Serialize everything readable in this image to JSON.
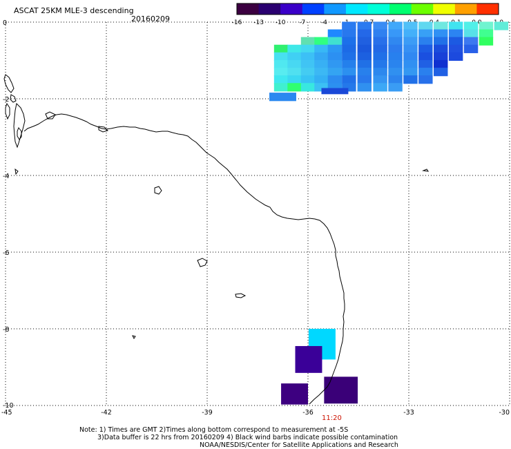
{
  "title": {
    "product": "ASCAT 25KM MLE-3 descending",
    "date": "20160209"
  },
  "colorbar": {
    "tick_labels": [
      "-16",
      "-13",
      "-10",
      "-7",
      "-4",
      "-1",
      "-0.7",
      "-0.6",
      "-0.5",
      "-0.4",
      "-0.1",
      "0.0",
      "1.0"
    ],
    "colors": [
      "#3b0040",
      "#2a0070",
      "#3a00c8",
      "#0040ff",
      "#1098ff",
      "#00e8ff",
      "#00ffd8",
      "#00ff70",
      "#6cff00",
      "#f0ff00",
      "#ffa000",
      "#ff3000"
    ]
  },
  "time_label": {
    "text": "11:20",
    "color": "#cc1100"
  },
  "notes": {
    "line1": "Note: 1) Times are GMT 2)Times along bottom correspond to measurement at -5S",
    "line2": "3)Data buffer is 22 hrs from 20160209 4) Black wind barbs indicate possible contamination",
    "line3": "NOAA/NESDIS/Center for Satellite Applications and Research"
  },
  "chart_data": {
    "type": "heatmap",
    "title": "ASCAT 25KM MLE-3 descending",
    "subtitle": "20160209",
    "xlabel": "",
    "ylabel": "",
    "x_ticks": [
      "-45",
      "-42",
      "-39",
      "-36",
      "-33",
      "-30"
    ],
    "y_ticks": [
      "0",
      "-2",
      "-4",
      "-6",
      "-8",
      "-10"
    ],
    "xlim": [
      -45,
      -30
    ],
    "ylim": [
      -10,
      0
    ],
    "grid": true,
    "legend": "colorbar top-right",
    "cells": [
      {
        "lon": -34.78,
        "lat": -0.1,
        "c": "#2a7af0"
      },
      {
        "lon": -34.32,
        "lat": -0.1,
        "c": "#2a7af0"
      },
      {
        "lon": -33.85,
        "lat": -0.1,
        "c": "#3a8cf4"
      },
      {
        "lon": -33.4,
        "lat": -0.1,
        "c": "#40a8fa"
      },
      {
        "lon": -32.95,
        "lat": -0.1,
        "c": "#50c0f8"
      },
      {
        "lon": -32.5,
        "lat": -0.1,
        "c": "#60d8f0"
      },
      {
        "lon": -32.05,
        "lat": -0.1,
        "c": "#70e8e0"
      },
      {
        "lon": -31.6,
        "lat": -0.1,
        "c": "#40e4f0"
      },
      {
        "lon": -31.15,
        "lat": -0.1,
        "c": "#50f0e8"
      },
      {
        "lon": -30.7,
        "lat": -0.1,
        "c": "#70f4d0"
      },
      {
        "lon": -30.25,
        "lat": -0.1,
        "c": "#60ecd8"
      },
      {
        "lon": -35.2,
        "lat": -0.3,
        "c": "#1f88ff"
      },
      {
        "lon": -34.78,
        "lat": -0.3,
        "c": "#2878ee"
      },
      {
        "lon": -34.32,
        "lat": -0.3,
        "c": "#2468e8"
      },
      {
        "lon": -33.85,
        "lat": -0.3,
        "c": "#2f80f0"
      },
      {
        "lon": -33.4,
        "lat": -0.3,
        "c": "#3898f8"
      },
      {
        "lon": -32.95,
        "lat": -0.3,
        "c": "#44b0fa"
      },
      {
        "lon": -32.5,
        "lat": -0.3,
        "c": "#38a0f6"
      },
      {
        "lon": -32.05,
        "lat": -0.3,
        "c": "#3090f4"
      },
      {
        "lon": -31.6,
        "lat": -0.3,
        "c": "#2c84f2"
      },
      {
        "lon": -31.15,
        "lat": -0.3,
        "c": "#58e0e8"
      },
      {
        "lon": -30.7,
        "lat": -0.3,
        "c": "#40ff90"
      },
      {
        "lon": -36.0,
        "lat": -0.5,
        "c": "#60e0b0"
      },
      {
        "lon": -35.6,
        "lat": -0.5,
        "c": "#30ff80"
      },
      {
        "lon": -35.2,
        "lat": -0.5,
        "c": "#40e0d0"
      },
      {
        "lon": -34.78,
        "lat": -0.5,
        "c": "#1c70ea"
      },
      {
        "lon": -34.32,
        "lat": -0.5,
        "c": "#2060e0"
      },
      {
        "lon": -33.85,
        "lat": -0.5,
        "c": "#2870ea"
      },
      {
        "lon": -33.4,
        "lat": -0.5,
        "c": "#3088f0"
      },
      {
        "lon": -32.95,
        "lat": -0.5,
        "c": "#3c9cf6"
      },
      {
        "lon": -32.5,
        "lat": -0.5,
        "c": "#2a80ee"
      },
      {
        "lon": -32.05,
        "lat": -0.5,
        "c": "#2070e8"
      },
      {
        "lon": -31.6,
        "lat": -0.5,
        "c": "#1c5ae2"
      },
      {
        "lon": -31.15,
        "lat": -0.5,
        "c": "#3c78f0"
      },
      {
        "lon": -30.7,
        "lat": -0.5,
        "c": "#30ff60"
      },
      {
        "lon": -36.8,
        "lat": -0.7,
        "c": "#30f070"
      },
      {
        "lon": -36.4,
        "lat": -0.7,
        "c": "#40e8e8"
      },
      {
        "lon": -36.0,
        "lat": -0.7,
        "c": "#44d8f0"
      },
      {
        "lon": -35.6,
        "lat": -0.7,
        "c": "#38b8f6"
      },
      {
        "lon": -35.2,
        "lat": -0.7,
        "c": "#2c98f4"
      },
      {
        "lon": -34.78,
        "lat": -0.7,
        "c": "#1c6ae6"
      },
      {
        "lon": -34.32,
        "lat": -0.7,
        "c": "#1a58dc"
      },
      {
        "lon": -33.85,
        "lat": -0.7,
        "c": "#2268e6"
      },
      {
        "lon": -33.4,
        "lat": -0.7,
        "c": "#2c7cee"
      },
      {
        "lon": -32.95,
        "lat": -0.7,
        "c": "#3690f4"
      },
      {
        "lon": -32.5,
        "lat": -0.7,
        "c": "#1c5ce4"
      },
      {
        "lon": -32.05,
        "lat": -0.7,
        "c": "#1a4cdc"
      },
      {
        "lon": -31.6,
        "lat": -0.7,
        "c": "#2050e0"
      },
      {
        "lon": -31.15,
        "lat": -0.7,
        "c": "#2860e8"
      },
      {
        "lon": -36.8,
        "lat": -0.9,
        "c": "#48e0f0"
      },
      {
        "lon": -36.4,
        "lat": -0.9,
        "c": "#40d0f4"
      },
      {
        "lon": -36.0,
        "lat": -0.9,
        "c": "#3cc0f6"
      },
      {
        "lon": -35.6,
        "lat": -0.9,
        "c": "#34a8f4"
      },
      {
        "lon": -35.2,
        "lat": -0.9,
        "c": "#2c90f2"
      },
      {
        "lon": -34.78,
        "lat": -0.9,
        "c": "#1e70e8"
      },
      {
        "lon": -34.32,
        "lat": -0.9,
        "c": "#1c60e0"
      },
      {
        "lon": -33.85,
        "lat": -0.9,
        "c": "#2070e8"
      },
      {
        "lon": -33.4,
        "lat": -0.9,
        "c": "#2880ee"
      },
      {
        "lon": -32.95,
        "lat": -0.9,
        "c": "#3088f2"
      },
      {
        "lon": -32.5,
        "lat": -0.9,
        "c": "#1a50e0"
      },
      {
        "lon": -32.05,
        "lat": -0.9,
        "c": "#1840d8"
      },
      {
        "lon": -31.6,
        "lat": -0.9,
        "c": "#1c4ade"
      },
      {
        "lon": -36.8,
        "lat": -1.1,
        "c": "#50e8f0"
      },
      {
        "lon": -36.4,
        "lat": -1.1,
        "c": "#48d8f2"
      },
      {
        "lon": -36.0,
        "lat": -1.1,
        "c": "#40c4f4"
      },
      {
        "lon": -35.6,
        "lat": -1.1,
        "c": "#38b0f4"
      },
      {
        "lon": -35.2,
        "lat": -1.1,
        "c": "#3098f2"
      },
      {
        "lon": -34.78,
        "lat": -1.1,
        "c": "#2480ec"
      },
      {
        "lon": -34.32,
        "lat": -1.1,
        "c": "#2070e6"
      },
      {
        "lon": -33.85,
        "lat": -1.1,
        "c": "#2478ea"
      },
      {
        "lon": -33.4,
        "lat": -1.1,
        "c": "#2a84ee"
      },
      {
        "lon": -32.95,
        "lat": -1.1,
        "c": "#3090f2"
      },
      {
        "lon": -32.5,
        "lat": -1.1,
        "c": "#2060e4"
      },
      {
        "lon": -32.05,
        "lat": -1.1,
        "c": "#1030d0"
      },
      {
        "lon": -36.8,
        "lat": -1.3,
        "c": "#58ecf0"
      },
      {
        "lon": -36.4,
        "lat": -1.3,
        "c": "#50e0f0"
      },
      {
        "lon": -36.0,
        "lat": -1.3,
        "c": "#44ccf2"
      },
      {
        "lon": -35.6,
        "lat": -1.3,
        "c": "#3cb8f4"
      },
      {
        "lon": -35.2,
        "lat": -1.3,
        "c": "#34a4f2"
      },
      {
        "lon": -34.78,
        "lat": -1.3,
        "c": "#2c90f0"
      },
      {
        "lon": -34.32,
        "lat": -1.3,
        "c": "#2880ec"
      },
      {
        "lon": -33.85,
        "lat": -1.3,
        "c": "#2c88ee"
      },
      {
        "lon": -33.4,
        "lat": -1.3,
        "c": "#3090f0"
      },
      {
        "lon": -32.95,
        "lat": -1.3,
        "c": "#3498f2"
      },
      {
        "lon": -32.5,
        "lat": -1.3,
        "c": "#2a80ee"
      },
      {
        "lon": -32.05,
        "lat": -1.3,
        "c": "#2060e4"
      },
      {
        "lon": -36.8,
        "lat": -1.5,
        "c": "#40e8f0"
      },
      {
        "lon": -36.4,
        "lat": -1.5,
        "c": "#3cd8f2"
      },
      {
        "lon": -36.0,
        "lat": -1.5,
        "c": "#38c4f4"
      },
      {
        "lon": -35.6,
        "lat": -1.5,
        "c": "#34b0f4"
      },
      {
        "lon": -35.2,
        "lat": -1.5,
        "c": "#2c8cf0"
      },
      {
        "lon": -34.78,
        "lat": -1.5,
        "c": "#2070e8"
      },
      {
        "lon": -34.32,
        "lat": -1.5,
        "c": "#2878ec"
      },
      {
        "lon": -33.85,
        "lat": -1.5,
        "c": "#3494f2"
      },
      {
        "lon": -33.4,
        "lat": -1.5,
        "c": "#2c84ee"
      },
      {
        "lon": -32.95,
        "lat": -1.5,
        "c": "#2070e8"
      },
      {
        "lon": -32.5,
        "lat": -1.5,
        "c": "#2870ea"
      },
      {
        "lon": -36.8,
        "lat": -1.7,
        "c": "#40f0d0"
      },
      {
        "lon": -36.4,
        "lat": -1.7,
        "c": "#30ff70"
      },
      {
        "lon": -36.0,
        "lat": -1.7,
        "c": "#38e8e0"
      },
      {
        "lon": -35.6,
        "lat": -1.7,
        "c": "#3cc0f4"
      },
      {
        "lon": -35.2,
        "lat": -1.7,
        "c": "#2c90f0"
      },
      {
        "lon": -34.78,
        "lat": -1.7,
        "c": "#2478ea"
      },
      {
        "lon": -34.32,
        "lat": -1.7,
        "c": "#3090f0"
      },
      {
        "lon": -33.85,
        "lat": -1.7,
        "c": "#3ca8f6"
      },
      {
        "lon": -33.4,
        "lat": -1.7,
        "c": "#3a9cf4"
      },
      {
        "lon": -36.75,
        "lat": -1.95,
        "w": 0.8,
        "c": "#2a88f0"
      },
      {
        "lon": -35.2,
        "lat": -1.8,
        "w": 0.8,
        "h": 0.16,
        "c": "#1a48d8"
      },
      {
        "lon": -35.58,
        "lat": -8.4,
        "w": 0.8,
        "h": 0.8,
        "c": "#00d8ff"
      },
      {
        "lon": -35.98,
        "lat": -8.8,
        "w": 0.8,
        "h": 0.7,
        "c": "#3a0098"
      },
      {
        "lon": -36.4,
        "lat": -9.7,
        "w": 0.8,
        "h": 0.55,
        "c": "#3d0080"
      },
      {
        "lon": -35.02,
        "lat": -9.6,
        "w": 1.0,
        "h": 0.7,
        "c": "#3a0078"
      }
    ]
  }
}
